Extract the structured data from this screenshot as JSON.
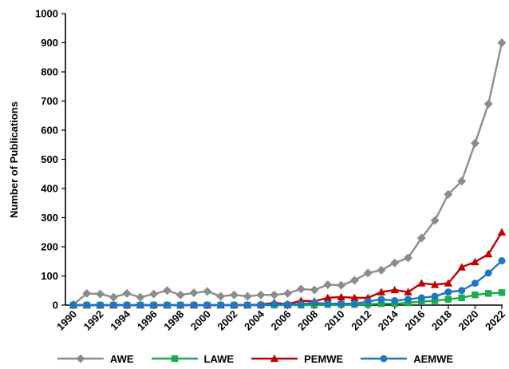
{
  "chart_data": {
    "type": "line",
    "ylabel": "Number of Publications",
    "xlabel": "",
    "ylim": [
      0,
      1000
    ],
    "yticks": [
      0,
      100,
      200,
      300,
      400,
      500,
      600,
      700,
      800,
      900,
      1000
    ],
    "x": [
      1990,
      1991,
      1992,
      1993,
      1994,
      1995,
      1996,
      1997,
      1998,
      1999,
      2000,
      2001,
      2002,
      2003,
      2004,
      2005,
      2006,
      2007,
      2008,
      2009,
      2010,
      2011,
      2012,
      2013,
      2014,
      2015,
      2016,
      2017,
      2018,
      2019,
      2020,
      2021,
      2022
    ],
    "xtick_labels": [
      "1990",
      "1992",
      "1994",
      "1996",
      "1998",
      "2000",
      "2002",
      "2004",
      "2006",
      "2008",
      "2010",
      "2012",
      "2014",
      "2016",
      "2018",
      "2020",
      "2022"
    ],
    "grid": false,
    "legend_position": "bottom",
    "series": [
      {
        "name": "AWE",
        "color": "#8c8c8c",
        "marker": "diamond",
        "values": [
          2,
          40,
          38,
          27,
          40,
          27,
          38,
          50,
          35,
          42,
          47,
          30,
          35,
          30,
          35,
          35,
          40,
          55,
          52,
          70,
          68,
          85,
          110,
          120,
          145,
          162,
          230,
          290,
          380,
          425,
          555,
          690,
          900
        ]
      },
      {
        "name": "LAWE",
        "color": "#1aab4a",
        "marker": "square",
        "values": [
          0,
          0,
          0,
          0,
          0,
          0,
          0,
          0,
          0,
          0,
          0,
          0,
          0,
          0,
          0,
          0,
          0,
          0,
          0,
          2,
          2,
          2,
          3,
          5,
          5,
          8,
          12,
          15,
          20,
          25,
          35,
          40,
          43
        ]
      },
      {
        "name": "PEMWE",
        "color": "#c00000",
        "marker": "triangle",
        "values": [
          0,
          0,
          0,
          0,
          0,
          0,
          0,
          0,
          0,
          0,
          0,
          0,
          0,
          0,
          2,
          8,
          3,
          15,
          13,
          25,
          28,
          25,
          25,
          45,
          52,
          45,
          75,
          70,
          75,
          130,
          148,
          175,
          250
        ]
      },
      {
        "name": "AEMWE",
        "color": "#1f77c4",
        "marker": "circle",
        "values": [
          0,
          0,
          0,
          0,
          0,
          0,
          0,
          0,
          0,
          0,
          0,
          0,
          0,
          0,
          0,
          3,
          2,
          3,
          8,
          5,
          5,
          5,
          12,
          20,
          15,
          20,
          25,
          30,
          45,
          50,
          75,
          110,
          152
        ]
      }
    ]
  }
}
